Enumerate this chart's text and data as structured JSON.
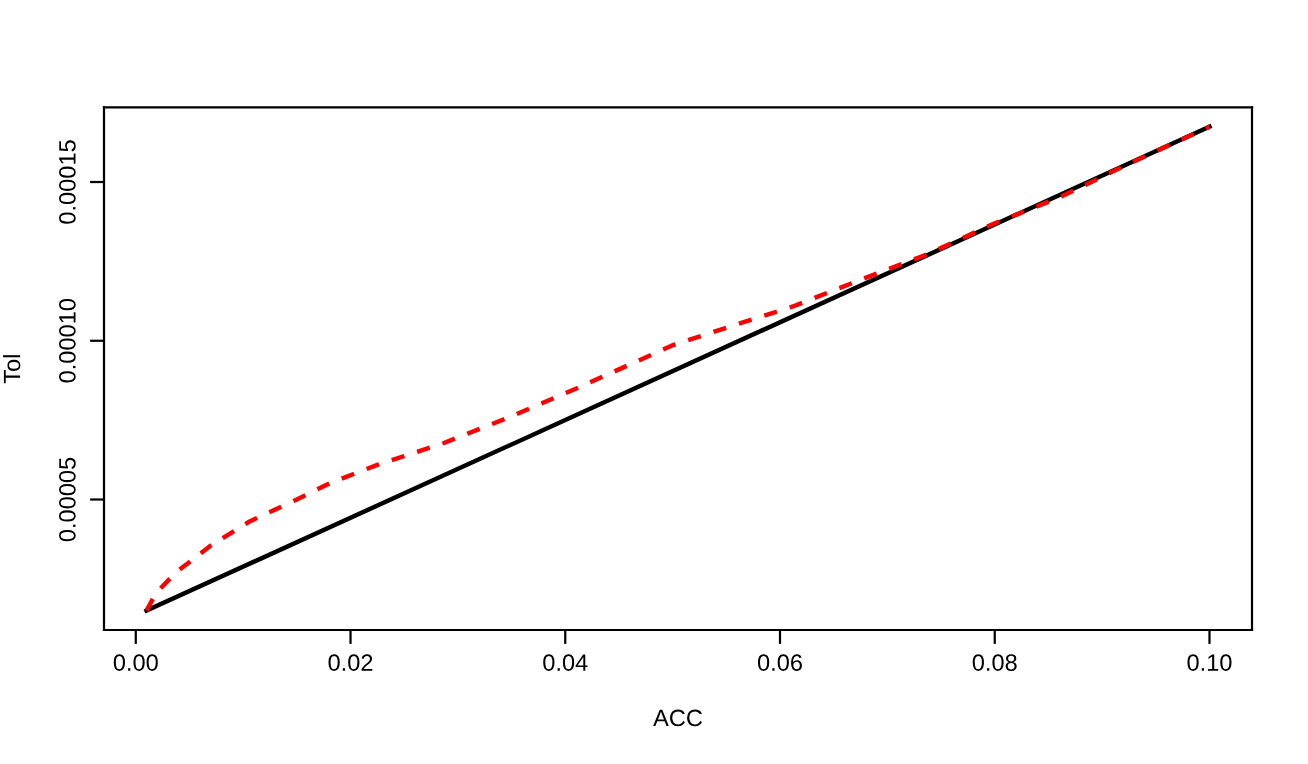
{
  "chart_data": {
    "type": "line",
    "xlabel": "ACC",
    "ylabel": "Tol",
    "xlim": [
      -0.00296,
      0.10396
    ],
    "ylim": [
      8.9e-06,
      0.0001735
    ],
    "xticks": [
      {
        "value": 0,
        "label": "0.00"
      },
      {
        "value": 0.02,
        "label": "0.02"
      },
      {
        "value": 0.04,
        "label": "0.04"
      },
      {
        "value": 0.06,
        "label": "0.06"
      },
      {
        "value": 0.08,
        "label": "0.08"
      },
      {
        "value": 0.1,
        "label": "0.10"
      }
    ],
    "yticks": [
      {
        "value": 5e-05,
        "label": "0.00005"
      },
      {
        "value": 0.0001,
        "label": "0.00010"
      },
      {
        "value": 0.00015,
        "label": "0.00015"
      }
    ],
    "grid": false,
    "legend": false,
    "series": [
      {
        "color": "#000000",
        "line_style": "solid",
        "x": [
          0.001,
          0.1
        ],
        "values": [
          1.5e-05,
          0.0001674
        ]
      },
      {
        "color": "#ff0000",
        "line_style": "dashed",
        "x": [
          0.001,
          0.0019,
          0.0037,
          0.0069,
          0.0106,
          0.015,
          0.0181,
          0.0225,
          0.0287,
          0.035,
          0.0412,
          0.05,
          0.055,
          0.0612,
          0.0675,
          0.0737,
          0.08,
          0.0862,
          0.0925,
          0.1
        ],
        "values": [
          1.5e-05,
          2.06e-05,
          2.69e-05,
          3.53e-05,
          4.31e-05,
          5e-05,
          5.52e-05,
          6.09e-05,
          6.78e-05,
          7.62e-05,
          8.52e-05,
          9.86e-05,
          0.0001041,
          0.0001108,
          0.0001192,
          0.0001272,
          0.000137,
          0.0001454,
          0.0001558,
          0.0001674
        ]
      }
    ]
  }
}
